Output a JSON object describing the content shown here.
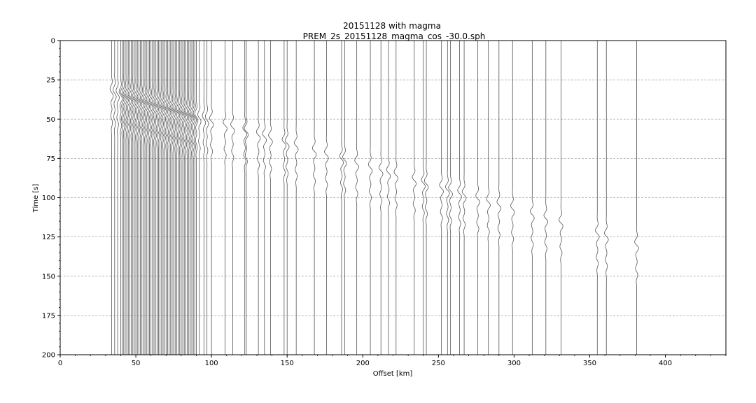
{
  "chart_data": {
    "type": "line",
    "title": "20151128 with magma",
    "subtitle": "PREM_2s_20151128_magma_cos_-30.0.sph",
    "xlabel": "Offset [km]",
    "ylabel": "Time [s]",
    "xlim": [
      0,
      440
    ],
    "ylim": [
      200,
      0
    ],
    "y_inverted": true,
    "xticks": [
      0,
      50,
      100,
      150,
      200,
      250,
      300,
      350,
      400
    ],
    "yticks": [
      0,
      25,
      50,
      75,
      100,
      125,
      150,
      175,
      200
    ],
    "grid": "horizontal dashed",
    "trace_color": "#555555",
    "trace_offsets_km": [
      34,
      36,
      38,
      40,
      41,
      42,
      43,
      44,
      45,
      46,
      47,
      48,
      49,
      50,
      51,
      52,
      53,
      54,
      55,
      56,
      57,
      58,
      59,
      60,
      61,
      62,
      63,
      64,
      65,
      66,
      67,
      68,
      69,
      70,
      71,
      72,
      73,
      74,
      75,
      76,
      77,
      78,
      79,
      80,
      81,
      82,
      83,
      84,
      85,
      86,
      87,
      88,
      89,
      90,
      92,
      95,
      97,
      100,
      109,
      114,
      122,
      123,
      131,
      135,
      139,
      148,
      150,
      156,
      168,
      176,
      186,
      188,
      196,
      205,
      212,
      217,
      222,
      234,
      240,
      242,
      252,
      256,
      258,
      264,
      267,
      276,
      283,
      290,
      299,
      312,
      321,
      331,
      355,
      361,
      381
    ],
    "arrivals_s": {
      "first_arrival_at_34km": 28,
      "arrival_slope_s_per_km": 0.28
    }
  }
}
